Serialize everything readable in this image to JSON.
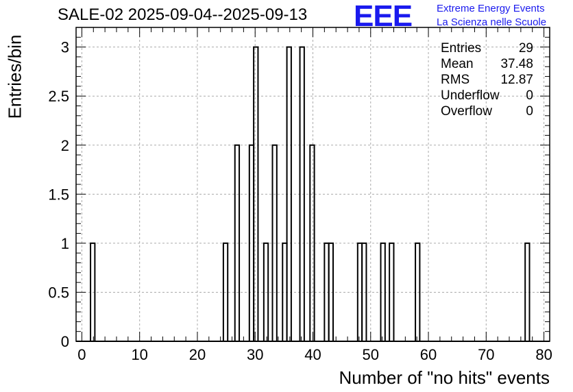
{
  "title": "SALE-02 2025-09-04--2025-09-13",
  "logo": {
    "mark": "EEE",
    "line1": "Extreme Energy Events",
    "line2": "La Scienza nelle Scuole",
    "color": "#1a1aee"
  },
  "stats": [
    {
      "key": "Entries",
      "value": "29"
    },
    {
      "key": "Mean",
      "value": "37.48"
    },
    {
      "key": "RMS",
      "value": "12.87"
    },
    {
      "key": "Underflow",
      "value": "0"
    },
    {
      "key": "Overflow",
      "value": "0"
    }
  ],
  "chart_data": {
    "type": "bar",
    "style": "histogram-step",
    "xlabel": "Number of \"no hits\" events",
    "ylabel": "Entries/bin",
    "xlim": [
      -1,
      81
    ],
    "ylim": [
      0,
      3.2
    ],
    "bin_width": 0.75,
    "x_ticks": [
      "0",
      "10",
      "20",
      "30",
      "40",
      "50",
      "60",
      "70",
      "80"
    ],
    "y_ticks": [
      "0",
      "0.5",
      "1",
      "1.5",
      "2",
      "2.5",
      "3"
    ],
    "grid": true,
    "bins": [
      {
        "x": 1.5,
        "y": 1
      },
      {
        "x": 24.5,
        "y": 1
      },
      {
        "x": 26.5,
        "y": 2
      },
      {
        "x": 29.0,
        "y": 2
      },
      {
        "x": 29.75,
        "y": 3
      },
      {
        "x": 31.5,
        "y": 1
      },
      {
        "x": 33.0,
        "y": 2
      },
      {
        "x": 34.75,
        "y": 1
      },
      {
        "x": 35.5,
        "y": 3
      },
      {
        "x": 37.75,
        "y": 3
      },
      {
        "x": 39.5,
        "y": 2
      },
      {
        "x": 42.0,
        "y": 1
      },
      {
        "x": 42.75,
        "y": 1
      },
      {
        "x": 47.75,
        "y": 1
      },
      {
        "x": 48.5,
        "y": 1
      },
      {
        "x": 51.75,
        "y": 1
      },
      {
        "x": 53.25,
        "y": 1
      },
      {
        "x": 57.75,
        "y": 1
      },
      {
        "x": 76.75,
        "y": 1
      }
    ],
    "line_color": "#000000",
    "grid_color": "#aaaaaa"
  }
}
